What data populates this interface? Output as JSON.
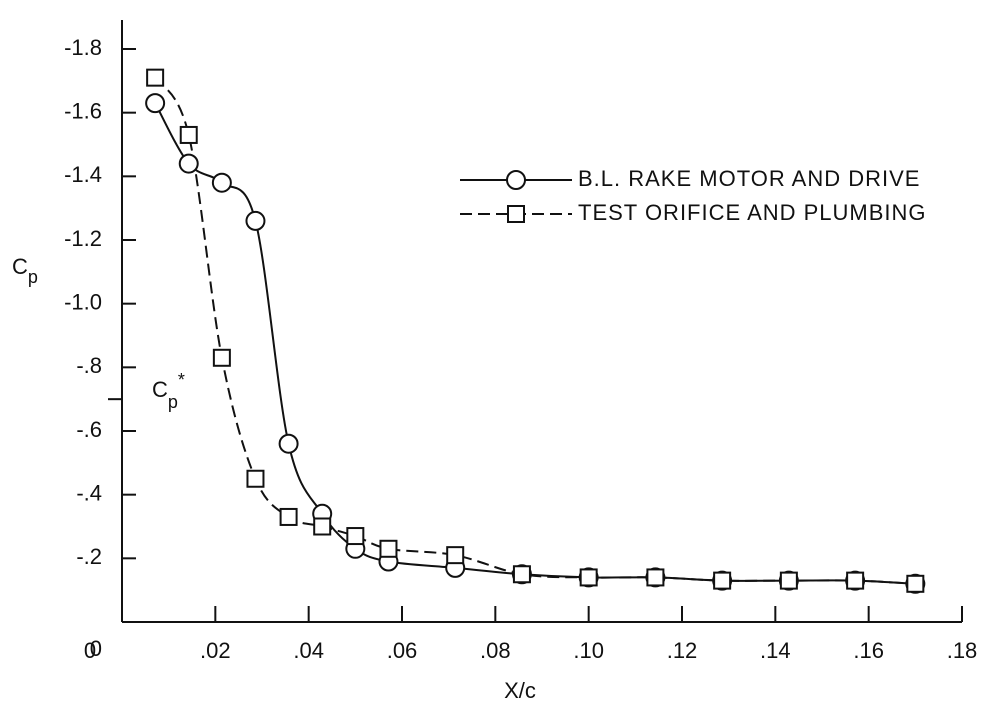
{
  "chart_data": {
    "type": "line",
    "x_label": "X/c",
    "y_label": {
      "main": "C",
      "sub": "p"
    },
    "annotation": {
      "main": "C",
      "sub": "p",
      "sup": "*",
      "value": -0.7
    },
    "xlim": [
      0,
      0.18
    ],
    "ylim": [
      0,
      -1.8
    ],
    "xticks": [
      0,
      {
        "value": 0.02,
        "label": ".02"
      },
      {
        "value": 0.04,
        "label": ".04"
      },
      {
        "value": 0.06,
        "label": ".06"
      },
      {
        "value": 0.08,
        "label": ".08"
      },
      {
        "value": 0.1,
        "label": ".10"
      },
      {
        "value": 0.12,
        "label": ".12"
      },
      {
        "value": 0.14,
        "label": ".14"
      },
      {
        "value": 0.16,
        "label": ".16"
      },
      {
        "value": 0.18,
        "label": ".18"
      }
    ],
    "yticks": [
      0,
      {
        "value": -0.2,
        "label": "-.2"
      },
      {
        "value": -0.4,
        "label": "-.4"
      },
      {
        "value": -0.6,
        "label": "-.6"
      },
      {
        "value": -0.8,
        "label": "-.8"
      },
      {
        "value": -1.0,
        "label": "-1.0"
      },
      -1.2,
      -1.4,
      -1.6,
      -1.8
    ],
    "x": [
      0.0071,
      0.0143,
      0.0214,
      0.0286,
      0.0357,
      0.0429,
      0.05,
      0.0571,
      0.0714,
      0.0857,
      0.1,
      0.1143,
      0.1286,
      0.1429,
      0.1571,
      0.17
    ],
    "series": [
      {
        "name": "B.L. RAKE MOTOR AND DRIVE",
        "marker": "circle",
        "dash": false,
        "color": "#111111",
        "values": [
          -1.63,
          -1.44,
          -1.38,
          -1.26,
          -0.56,
          -0.34,
          -0.23,
          -0.19,
          -0.17,
          -0.15,
          -0.14,
          -0.14,
          -0.13,
          -0.13,
          -0.13,
          -0.12
        ]
      },
      {
        "name": "TEST ORIFICE AND PLUMBING",
        "marker": "square",
        "dash": true,
        "color": "#111111",
        "values": [
          -1.71,
          -1.53,
          -0.83,
          -0.45,
          -0.33,
          -0.3,
          -0.27,
          -0.23,
          -0.21,
          -0.15,
          -0.14,
          -0.14,
          -0.13,
          -0.13,
          -0.13,
          -0.12
        ]
      }
    ]
  }
}
